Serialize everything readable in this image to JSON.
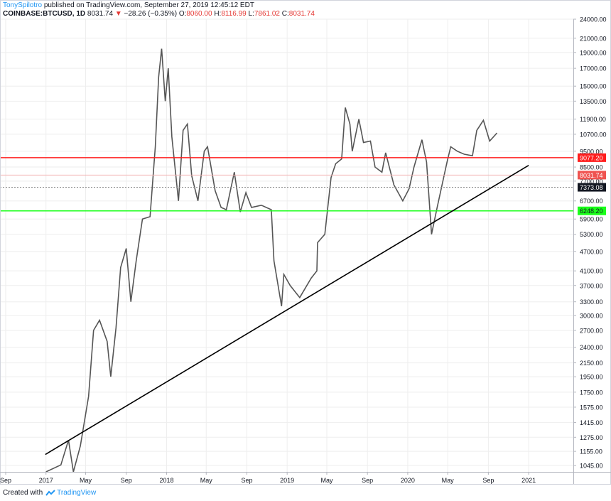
{
  "header": {
    "author": "TonySpilotro",
    "published": "published on TradingView.com, September 27, 2019 12:45:12 EDT",
    "symbol": "COINBASE:BTCUSD, 1D",
    "last": "8031.74",
    "change_arrow": "▼",
    "change": "−28.26 (−0.35%)",
    "open_label": "O:",
    "open": "8060.00",
    "high_label": "H:",
    "high": "8116.99",
    "low_label": "L:",
    "low": "7861.02",
    "close_label": "C:",
    "close": "8031.74"
  },
  "footer": {
    "created_with": "Created with",
    "brand": "TradingView"
  },
  "colors": {
    "resistance": "#ff1e1e",
    "support": "#1aff1a",
    "last_price_label": "#ef5350",
    "current_price_label": "#131722",
    "candles": "#555555",
    "trendline": "#000000",
    "grid": "#eeeeee"
  },
  "chart_data": {
    "type": "line",
    "scale": "log",
    "ylim": [
      1000,
      24000
    ],
    "x_range": [
      "2016-09",
      "2021-04"
    ],
    "x_ticks": [
      {
        "date": "2016-09-01",
        "label": "Sep"
      },
      {
        "date": "2017-01-01",
        "label": "2017"
      },
      {
        "date": "2017-05-01",
        "label": "May"
      },
      {
        "date": "2017-09-01",
        "label": "Sep"
      },
      {
        "date": "2018-01-01",
        "label": "2018"
      },
      {
        "date": "2018-05-01",
        "label": "May"
      },
      {
        "date": "2018-09-01",
        "label": "Sep"
      },
      {
        "date": "2019-01-01",
        "label": "2019"
      },
      {
        "date": "2019-05-01",
        "label": "May"
      },
      {
        "date": "2019-09-01",
        "label": "Sep"
      },
      {
        "date": "2020-01-01",
        "label": "2020"
      },
      {
        "date": "2020-05-01",
        "label": "May"
      },
      {
        "date": "2020-09-01",
        "label": "Sep"
      },
      {
        "date": "2021-01-01",
        "label": "2021"
      }
    ],
    "y_ticks": [
      24000,
      21000,
      19000,
      17000,
      15000,
      13500,
      11900,
      10700,
      9500,
      8500,
      7700,
      6700,
      5900,
      5300,
      4700,
      4100,
      3700,
      3300,
      3000,
      2700,
      2400,
      2150,
      1950,
      1750,
      1575,
      1415,
      1275,
      1155,
      1045
    ],
    "y_tick_labels": [
      "24000.00",
      "21000.00",
      "19000.00",
      "17000.00",
      "15000.00",
      "13500.00",
      "11900.00",
      "10700.00",
      "9500.00",
      "8500.00",
      "7700.00",
      "6700.00",
      "5900.00",
      "5300.00",
      "4700.00",
      "4100.00",
      "3700.00",
      "3300.00",
      "3000.00",
      "2700.00",
      "2400.00",
      "2150.00",
      "1950.00",
      "1750.00",
      "1575.00",
      "1415.00",
      "1275.00",
      "1155.00",
      "1045.00"
    ],
    "series": [
      {
        "values": [
          [
            "2017-01-01",
            1000
          ],
          [
            "2017-02-15",
            1050
          ],
          [
            "2017-03-10",
            1250
          ],
          [
            "2017-03-25",
            1000
          ],
          [
            "2017-04-15",
            1200
          ],
          [
            "2017-05-10",
            1700
          ],
          [
            "2017-05-25",
            2700
          ],
          [
            "2017-06-12",
            2900
          ],
          [
            "2017-07-05",
            2500
          ],
          [
            "2017-07-16",
            1950
          ],
          [
            "2017-08-01",
            2750
          ],
          [
            "2017-08-15",
            4200
          ],
          [
            "2017-09-01",
            4800
          ],
          [
            "2017-09-15",
            3300
          ],
          [
            "2017-10-01",
            4400
          ],
          [
            "2017-10-20",
            5900
          ],
          [
            "2017-11-12",
            6000
          ],
          [
            "2017-11-28",
            9800
          ],
          [
            "2017-12-08",
            16000
          ],
          [
            "2017-12-17",
            19500
          ],
          [
            "2017-12-28",
            13500
          ],
          [
            "2018-01-06",
            17000
          ],
          [
            "2018-01-17",
            10500
          ],
          [
            "2018-02-06",
            6700
          ],
          [
            "2018-02-20",
            11000
          ],
          [
            "2018-03-05",
            11500
          ],
          [
            "2018-03-18",
            8000
          ],
          [
            "2018-04-06",
            6700
          ],
          [
            "2018-04-25",
            9500
          ],
          [
            "2018-05-05",
            9800
          ],
          [
            "2018-05-28",
            7200
          ],
          [
            "2018-06-15",
            6400
          ],
          [
            "2018-07-01",
            6300
          ],
          [
            "2018-07-25",
            8200
          ],
          [
            "2018-08-12",
            6200
          ],
          [
            "2018-08-29",
            7100
          ],
          [
            "2018-09-15",
            6400
          ],
          [
            "2018-10-15",
            6500
          ],
          [
            "2018-11-14",
            6300
          ],
          [
            "2018-11-22",
            4400
          ],
          [
            "2018-12-15",
            3200
          ],
          [
            "2018-12-22",
            4000
          ],
          [
            "2019-01-10",
            3700
          ],
          [
            "2019-02-08",
            3400
          ],
          [
            "2019-03-15",
            3900
          ],
          [
            "2019-04-01",
            4100
          ],
          [
            "2019-04-03",
            5000
          ],
          [
            "2019-04-25",
            5300
          ],
          [
            "2019-05-14",
            7900
          ],
          [
            "2019-05-28",
            8700
          ],
          [
            "2019-06-15",
            9000
          ],
          [
            "2019-06-26",
            12900
          ],
          [
            "2019-07-10",
            11500
          ],
          [
            "2019-07-17",
            9500
          ],
          [
            "2019-08-06",
            11900
          ],
          [
            "2019-08-20",
            10100
          ],
          [
            "2019-09-10",
            10200
          ],
          [
            "2019-09-24",
            8500
          ],
          [
            "2019-10-15",
            8200
          ],
          [
            "2019-10-26",
            9400
          ],
          [
            "2019-11-20",
            7500
          ],
          [
            "2019-12-17",
            6700
          ],
          [
            "2020-01-05",
            7300
          ],
          [
            "2020-01-20",
            8500
          ],
          [
            "2020-02-13",
            10300
          ],
          [
            "2020-02-27",
            8800
          ],
          [
            "2020-03-13",
            5300
          ],
          [
            "2020-03-30",
            6400
          ],
          [
            "2020-04-29",
            8800
          ],
          [
            "2020-05-10",
            9800
          ],
          [
            "2020-05-30",
            9500
          ],
          [
            "2020-06-20",
            9300
          ],
          [
            "2020-07-15",
            9200
          ],
          [
            "2020-07-28",
            11000
          ],
          [
            "2020-08-17",
            11800
          ],
          [
            "2020-09-05",
            10200
          ],
          [
            "2020-09-27",
            10800
          ]
        ]
      }
    ],
    "horizontal_lines": [
      {
        "value": 9077.2,
        "label": "9077.20",
        "color": "#ff1e1e"
      },
      {
        "value": 6248.2,
        "label": "6248.20",
        "color": "#1aff1a"
      },
      {
        "value": 8031.74,
        "label": "8031.74",
        "color": "#ef5350"
      },
      {
        "value": 7373.08,
        "label": "7373.08",
        "color": "#131722"
      }
    ],
    "trendline": {
      "start": [
        "2016-12-30",
        1130
      ],
      "end": [
        "2021-01-01",
        8600
      ]
    }
  }
}
